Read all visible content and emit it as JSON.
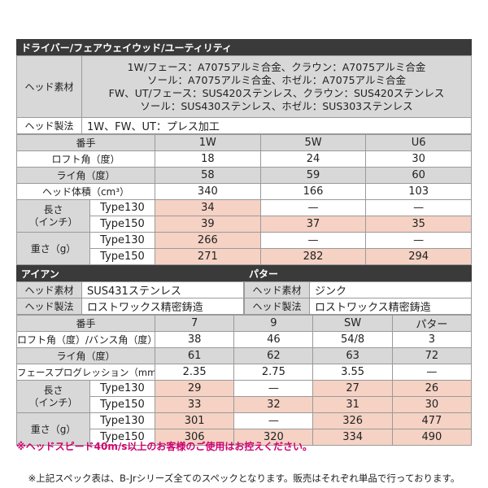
{
  "driver": {
    "section_title": "ドライバー/フェアウェイウッド/ユーティリティ",
    "head_material_label": "ヘッド素材",
    "head_material_lines": [
      "1W/フェース：A7075アルミ合金、クラウン：A7075アルミ合金",
      "ソール：A7075アルミ合金、ホゼル：A7075アルミ合金",
      "FW、UT/フェース：SUS420ステンレス、クラウン：SUS420ステンレス",
      "ソール：SUS430ステンレス、ホゼル：SUS303ステンレス"
    ],
    "head_process_label": "ヘッド製法",
    "head_process_value": "1W、FW、UT：プレス加工",
    "number_label": "番手",
    "numbers": [
      "1W",
      "5W",
      "U6"
    ],
    "loft_label": "ロフト角（度）",
    "loft": [
      "18",
      "24",
      "30"
    ],
    "lie_label": "ライ角（度）",
    "lie": [
      "58",
      "59",
      "60"
    ],
    "volume_label": "ヘッド体積（cm³）",
    "volume": [
      "340",
      "166",
      "103"
    ],
    "length_label": "長さ（インチ）",
    "length_label_line1": "長さ",
    "length_label_line2": "（インチ）",
    "type130": "Type130",
    "type150": "Type150",
    "length_130": [
      "34",
      "—",
      "—"
    ],
    "length_150": [
      "39",
      "37",
      "35"
    ],
    "weight_label": "重さ（g）",
    "weight_130": [
      "266",
      "—",
      "—"
    ],
    "weight_150": [
      "271",
      "282",
      "294"
    ]
  },
  "iron": {
    "section_title": "アイアン",
    "head_material_label": "ヘッド素材",
    "head_material_value": "SUS431ステンレス",
    "head_process_label": "ヘッド製法",
    "head_process_value": "ロストワックス精密鋳造"
  },
  "putter": {
    "section_title": "パター",
    "head_material_label": "ヘッド素材",
    "head_material_value": "ジンク",
    "head_process_label": "ヘッド製法",
    "head_process_value": "ロストワックス精密鋳造"
  },
  "iron_table": {
    "number_label": "番手",
    "numbers": [
      "7",
      "9",
      "SW",
      "パター"
    ],
    "loft_label": "ロフト角（度）/バンス角（度）",
    "loft": [
      "38",
      "46",
      "54/8",
      "3"
    ],
    "lie_label": "ライ角（度）",
    "lie": [
      "61",
      "62",
      "63",
      "72"
    ],
    "progression_label": "フェースプログレッション（mm）",
    "progression": [
      "2.35",
      "2.75",
      "3.55",
      "—"
    ],
    "length_label_line1": "長さ",
    "length_label_line2": "（インチ）",
    "type130": "Type130",
    "type150": "Type150",
    "length_130": [
      "29",
      "—",
      "27",
      "26"
    ],
    "length_150": [
      "33",
      "32",
      "31",
      "30"
    ],
    "weight_label": "重さ（g）",
    "weight_130": [
      "301",
      "—",
      "326",
      "477"
    ],
    "weight_150": [
      "306",
      "320",
      "334",
      "490"
    ]
  },
  "notes": {
    "head_speed": "※ヘッドスピード40m/s以上のお客様のご使用はお控えください。",
    "bottom": "※上記スペック表は、B-Jrシリーズ全てのスペックとなります。販売はそれぞれ単品で行っております。"
  }
}
